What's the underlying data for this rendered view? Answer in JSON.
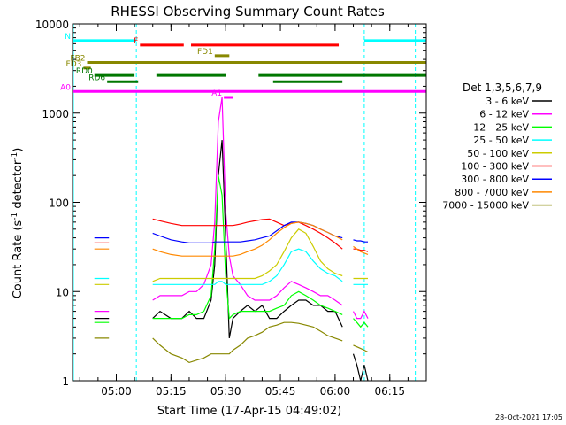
{
  "chart_data": {
    "type": "line",
    "title": "RHESSI Observing Summary Count Rates",
    "xlabel": "Start Time (17-Apr-15 04:49:02)",
    "ylabel_main": "Count Rate (s",
    "ylabel_sup1": "-1",
    "ylabel_mid": " detector",
    "ylabel_sup2": "-1",
    "ylabel_end": ")",
    "yscale": "log",
    "ylim": [
      1,
      10000
    ],
    "xlim_minutes": [
      -12,
      85
    ],
    "x_ticks": [
      {
        "label": "05:00",
        "min": 0
      },
      {
        "label": "05:15",
        "min": 15
      },
      {
        "label": "05:30",
        "min": 30
      },
      {
        "label": "05:45",
        "min": 45
      },
      {
        "label": "06:00",
        "min": 60
      },
      {
        "label": "06:15",
        "min": 75
      }
    ],
    "y_ticks": [
      {
        "label": "1",
        "value": 1
      },
      {
        "label": "10",
        "value": 10
      },
      {
        "label": "100",
        "value": 100
      },
      {
        "label": "1000",
        "value": 1000
      },
      {
        "label": "10000",
        "value": 10000
      }
    ],
    "legend_title": "Det 1,3,5,6,7,9",
    "legend_position": "right",
    "series": [
      {
        "name": "3 - 6 keV",
        "color": "#000000"
      },
      {
        "name": "6 - 12 keV",
        "color": "#ff00ff"
      },
      {
        "name": "12 - 25 keV",
        "color": "#00ff00"
      },
      {
        "name": "25 - 50 keV",
        "color": "#00ffff"
      },
      {
        "name": "50 - 100 keV",
        "color": "#cccc00"
      },
      {
        "name": "100 - 300 keV",
        "color": "#ff0000"
      },
      {
        "name": "300 - 800 keV",
        "color": "#0000ff"
      },
      {
        "name": "800 - 7000 keV",
        "color": "#ff8800"
      },
      {
        "name": "7000 - 15000 keV",
        "color": "#888800"
      }
    ],
    "data_x_minutes": [
      -6,
      -4,
      -3,
      -2,
      0,
      2,
      4,
      6,
      8,
      10,
      12,
      15,
      18,
      20,
      22,
      24,
      26,
      27,
      28,
      29,
      30,
      31,
      32,
      34,
      36,
      38,
      40,
      42,
      44,
      46,
      48,
      50,
      52,
      54,
      56,
      58,
      60,
      62,
      63,
      64,
      65,
      66,
      67,
      68,
      69
    ],
    "data_y": {
      "3 - 6 keV": [
        5,
        5,
        5,
        5,
        null,
        null,
        null,
        null,
        null,
        5,
        6,
        5,
        5,
        6,
        5,
        5,
        8,
        20,
        200,
        500,
        40,
        3,
        5,
        6,
        7,
        6,
        7,
        5,
        5,
        6,
        7,
        8,
        8,
        7,
        7,
        6,
        6,
        4,
        null,
        null,
        2,
        1.5,
        1,
        1.5,
        1
      ],
      "6 - 12 keV": [
        6,
        6,
        6,
        6,
        null,
        null,
        null,
        null,
        null,
        8,
        9,
        9,
        9,
        10,
        10,
        12,
        20,
        60,
        800,
        1500,
        80,
        25,
        15,
        12,
        9,
        8,
        8,
        8,
        9,
        11,
        13,
        12,
        11,
        10,
        9,
        9,
        8,
        7,
        null,
        null,
        6,
        5,
        5,
        6,
        5
      ],
      "12 - 25 keV": [
        4.5,
        4.5,
        4.5,
        4.5,
        null,
        null,
        null,
        null,
        null,
        5,
        5,
        5,
        5,
        5.5,
        5.5,
        6,
        9,
        30,
        200,
        120,
        15,
        5,
        5.5,
        6,
        6,
        6,
        6,
        6,
        6.5,
        7,
        9,
        10,
        9,
        8,
        7,
        6.5,
        6,
        5.5,
        null,
        null,
        5,
        4.5,
        4,
        4.5,
        4
      ],
      "25 - 50 keV": [
        14,
        14,
        14,
        14,
        null,
        null,
        null,
        null,
        null,
        12,
        12,
        12,
        12,
        12,
        12,
        12,
        12,
        12,
        13,
        13,
        12,
        12,
        12,
        12,
        12,
        12,
        12,
        13,
        15,
        20,
        28,
        30,
        28,
        22,
        18,
        16,
        15,
        13,
        null,
        null,
        12,
        12,
        12,
        12,
        12
      ],
      "50 - 100 keV": [
        12,
        12,
        12,
        12,
        null,
        null,
        null,
        null,
        null,
        13,
        14,
        14,
        14,
        14,
        14,
        14,
        14,
        14,
        14,
        14,
        14,
        14,
        14,
        14,
        14,
        14,
        15,
        17,
        20,
        28,
        40,
        50,
        45,
        32,
        22,
        18,
        16,
        15,
        null,
        null,
        14,
        14,
        14,
        14,
        14
      ],
      "100 - 300 keV": [
        35,
        35,
        35,
        35,
        null,
        null,
        null,
        null,
        null,
        65,
        62,
        58,
        55,
        55,
        55,
        55,
        55,
        55,
        55,
        55,
        55,
        55,
        55,
        57,
        60,
        62,
        64,
        65,
        60,
        55,
        58,
        60,
        55,
        50,
        45,
        40,
        35,
        30,
        null,
        null,
        30,
        30,
        29,
        29,
        28
      ],
      "300 - 800 keV": [
        40,
        40,
        40,
        40,
        null,
        null,
        null,
        null,
        null,
        45,
        42,
        38,
        36,
        35,
        35,
        35,
        35,
        36,
        36,
        36,
        36,
        36,
        36,
        36,
        37,
        38,
        40,
        42,
        48,
        55,
        60,
        60,
        58,
        55,
        50,
        46,
        42,
        40,
        null,
        null,
        38,
        37,
        37,
        36,
        36
      ],
      "800 - 7000 keV": [
        30,
        30,
        30,
        30,
        null,
        null,
        null,
        null,
        null,
        30,
        28,
        26,
        25,
        25,
        25,
        25,
        25,
        25,
        25,
        25,
        25,
        25,
        25,
        26,
        28,
        30,
        33,
        38,
        45,
        52,
        58,
        60,
        58,
        55,
        50,
        46,
        42,
        38,
        null,
        null,
        32,
        30,
        28,
        27,
        26
      ],
      "7000 - 15000 keV": [
        3,
        3,
        3,
        3,
        null,
        null,
        null,
        null,
        null,
        3,
        2.5,
        2,
        1.8,
        1.6,
        1.7,
        1.8,
        2,
        2,
        2,
        2,
        2,
        2,
        2.2,
        2.5,
        3,
        3.2,
        3.5,
        4,
        4.2,
        4.5,
        4.5,
        4.4,
        4.2,
        4,
        3.6,
        3.2,
        3,
        2.8,
        null,
        null,
        2.5,
        2.4,
        2.3,
        2.2,
        2.1
      ]
    },
    "flag_bars": [
      {
        "label": "N",
        "color": "#00ffff",
        "value": 6500,
        "segments": [
          [
            -12,
            5.5
          ],
          [
            68,
            85
          ]
        ]
      },
      {
        "label": "F",
        "color": "#ff0000",
        "value": 5800,
        "segments": [
          [
            6.5,
            18.5
          ],
          [
            20.5,
            61
          ]
        ]
      },
      {
        "label": "FD1",
        "color": "#888800",
        "value": 4400,
        "segments": [
          [
            27,
            31
          ]
        ]
      },
      {
        "label": "FB2",
        "color": "#888800",
        "value": 3700,
        "segments": [
          [
            -8,
            85
          ]
        ]
      },
      {
        "label": "FD3",
        "color": "#888800",
        "value": 3200,
        "segments": [
          [
            -9,
            -7
          ]
        ]
      },
      {
        "label": "RD0",
        "color": "#007700",
        "value": 2650,
        "segments": [
          [
            -6,
            5
          ],
          [
            11,
            30
          ],
          [
            39,
            85
          ]
        ]
      },
      {
        "label": "RD6",
        "color": "#007700",
        "value": 2250,
        "segments": [
          [
            -2.5,
            6
          ],
          [
            43,
            62
          ]
        ]
      },
      {
        "label": "A0",
        "color": "#ff00ff",
        "value": 1750,
        "segments": [
          [
            -12,
            85
          ]
        ]
      },
      {
        "label": "A1",
        "color": "#ff00ff",
        "value": 1500,
        "segments": [
          [
            29.5,
            32
          ]
        ]
      }
    ],
    "vertical_markers": [
      {
        "min": 5.5,
        "color": "#00ffff"
      },
      {
        "min": 68,
        "color": "#00ffff"
      },
      {
        "min": 82,
        "color": "#00ffff"
      }
    ]
  },
  "footer_timestamp": "28-Oct-2021 17:05"
}
